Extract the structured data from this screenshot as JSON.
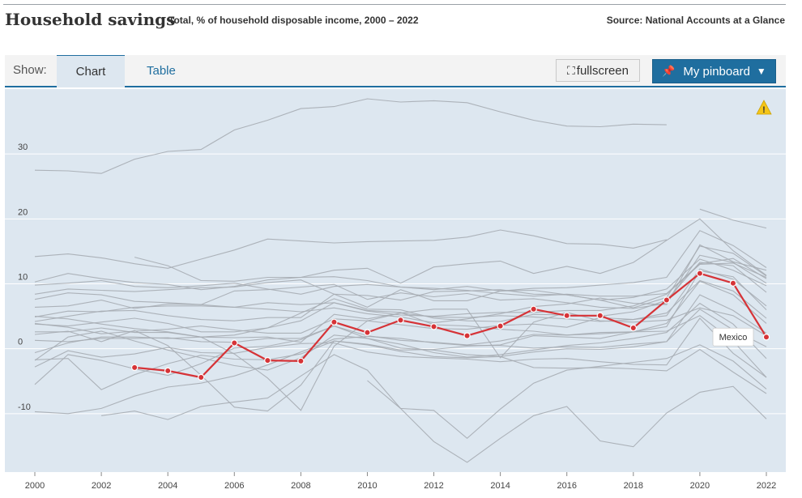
{
  "header": {
    "title": "Household savings",
    "subtitle": "Total, % of household disposable income, 2000 – 2022",
    "source": "Source: National Accounts at a Glance"
  },
  "toolbar": {
    "show_label": "Show:",
    "tabs": [
      "Chart",
      "Table"
    ],
    "active_tab": "Chart",
    "fullscreen_label": "fullscreen",
    "pinboard_label": "My pinboard",
    "accent_color": "#1f6e9f"
  },
  "chart_data": {
    "type": "line",
    "x": [
      2000,
      2001,
      2002,
      2003,
      2004,
      2005,
      2006,
      2007,
      2008,
      2009,
      2010,
      2011,
      2012,
      2013,
      2014,
      2015,
      2016,
      2017,
      2018,
      2019,
      2020,
      2021,
      2022
    ],
    "xticks": [
      "2000",
      "2002",
      "2004",
      "2006",
      "2008",
      "2010",
      "2012",
      "2014",
      "2016",
      "2018",
      "2020",
      "2022"
    ],
    "yticks": [
      "-10",
      "0",
      "10",
      "20",
      "30"
    ],
    "ylim": [
      -19,
      40
    ],
    "grid": true,
    "highlight": {
      "name": "Mexico",
      "color": "#d63337",
      "values": [
        null,
        null,
        null,
        -2.9,
        -3.4,
        -4.4,
        0.9,
        -1.8,
        -1.9,
        4.1,
        2.5,
        4.4,
        3.4,
        2.0,
        3.5,
        6.1,
        5.1,
        5.1,
        3.2,
        7.5,
        11.6,
        10.1,
        1.8
      ]
    },
    "background_series": [
      {
        "values": [
          null,
          null,
          null,
          null,
          null,
          null,
          null,
          null,
          null,
          null,
          null,
          null,
          null,
          null,
          null,
          null,
          null,
          null,
          null,
          null,
          21.5,
          19.8,
          18.6
        ]
      },
      {
        "values": [
          27.5,
          27.4,
          27.0,
          29.2,
          30.4,
          30.7,
          33.7,
          35.2,
          37.0,
          37.3,
          38.5,
          38.0,
          38.2,
          37.9,
          36.5,
          35.2,
          34.3,
          34.2,
          34.6,
          34.5,
          null,
          null,
          null
        ]
      },
      {
        "values": [
          14.2,
          14.6,
          14.0,
          13.1,
          12.4,
          13.8,
          15.2,
          16.9,
          16.6,
          16.3,
          16.5,
          16.6,
          16.7,
          17.2,
          18.3,
          17.4,
          16.2,
          16.1,
          15.5,
          16.8,
          null,
          null,
          null
        ]
      },
      {
        "values": [
          null,
          null,
          null,
          14.1,
          12.8,
          10.5,
          10.4,
          11.0,
          11.0,
          12.1,
          12.4,
          10.1,
          12.6,
          13.1,
          13.5,
          11.6,
          12.7,
          11.6,
          13.3,
          16.7,
          20.0,
          15.1,
          11.3
        ]
      },
      {
        "values": [
          10.3,
          11.6,
          10.8,
          10.2,
          9.9,
          9.1,
          9.6,
          10.6,
          11.0,
          11.1,
          10.5,
          9.5,
          9.1,
          9.6,
          8.9,
          9.3,
          9.4,
          9.8,
          10.2,
          11.0,
          18.2,
          15.9,
          12.5
        ]
      },
      {
        "values": [
          9.8,
          10.1,
          10.5,
          9.6,
          9.4,
          9.7,
          10.1,
          9.2,
          8.4,
          9.6,
          9.9,
          9.5,
          9.3,
          9.0,
          8.5,
          8.1,
          8.4,
          8.1,
          8.1,
          8.5,
          13.1,
          13.9,
          10.8
        ]
      },
      {
        "values": [
          8.4,
          9.2,
          9.0,
          8.8,
          9.1,
          9.4,
          9.5,
          10.2,
          10.6,
          8.4,
          6.4,
          9.1,
          7.4,
          7.4,
          8.9,
          9.0,
          8.3,
          7.5,
          6.3,
          7.9,
          15.8,
          14.7,
          11.2
        ]
      },
      {
        "values": [
          6.4,
          6.6,
          7.5,
          6.2,
          6.9,
          6.8,
          6.4,
          7.1,
          6.8,
          7.1,
          5.8,
          5.2,
          5.0,
          5.4,
          5.6,
          5.6,
          5.9,
          5.9,
          6.6,
          8.4,
          13.0,
          13.2,
          11.0
        ]
      },
      {
        "values": [
          4.9,
          5.8,
          5.7,
          6.4,
          6.6,
          6.6,
          6.4,
          6.1,
          5.7,
          6.3,
          5.4,
          4.9,
          4.0,
          4.6,
          5.4,
          6.5,
          6.9,
          7.8,
          7.0,
          6.8,
          16.0,
          13.4,
          12.1
        ]
      },
      {
        "values": [
          4.2,
          5.0,
          5.8,
          5.9,
          5.1,
          4.5,
          4.3,
          4.8,
          4.8,
          8.4,
          8.2,
          7.5,
          8.8,
          8.9,
          9.1,
          8.4,
          8.3,
          7.5,
          7.9,
          9.2,
          13.8,
          12.1,
          9.7
        ]
      },
      {
        "values": [
          3.8,
          3.5,
          4.1,
          4.7,
          3.9,
          2.6,
          2.6,
          3.2,
          5.5,
          7.7,
          6.1,
          6.0,
          4.7,
          4.3,
          4.2,
          5.3,
          5.2,
          5.0,
          5.7,
          7.5,
          13.3,
          12.8,
          8.7
        ]
      },
      {
        "values": [
          2.6,
          2.6,
          3.2,
          2.5,
          2.5,
          1.8,
          1.7,
          1.8,
          1.0,
          5.3,
          4.6,
          5.5,
          4.9,
          4.8,
          5.1,
          4.9,
          4.6,
          4.2,
          4.5,
          5.5,
          10.5,
          8.9,
          4.7
        ]
      },
      {
        "values": [
          -0.6,
          0.9,
          1.8,
          1.8,
          1.6,
          1.8,
          2.1,
          3.2,
          4.3,
          7.1,
          5.9,
          5.6,
          3.7,
          3.5,
          3.0,
          2.7,
          2.1,
          2.3,
          2.6,
          3.9,
          10.4,
          8.3,
          3.9
        ]
      },
      {
        "values": [
          1.3,
          1.1,
          1.6,
          1.6,
          1.7,
          1.1,
          1.0,
          1.6,
          1.6,
          3.5,
          2.0,
          1.3,
          1.0,
          0.6,
          1.2,
          2.2,
          2.1,
          2.5,
          2.6,
          3.4,
          12.0,
          11.1,
          6.0
        ]
      },
      {
        "values": [
          -1.8,
          1.8,
          2.7,
          1.2,
          -0.2,
          -1.4,
          -2.6,
          -3.3,
          -1.4,
          2.1,
          1.6,
          0.7,
          -0.6,
          -1.3,
          -0.9,
          -0.2,
          0.5,
          0.9,
          1.6,
          2.5,
          7.0,
          3.8,
          -1.5
        ]
      },
      {
        "values": [
          -2.8,
          -0.3,
          -1.3,
          -0.8,
          0.2,
          -0.6,
          -0.7,
          0.2,
          0.8,
          0.9,
          -0.5,
          -1.2,
          -1.4,
          -1.6,
          -2.0,
          -1.6,
          -1.5,
          -2.0,
          -2.4,
          -2.5,
          4.7,
          -0.7,
          -4.4
        ]
      },
      {
        "values": [
          -5.5,
          -0.9,
          -1.8,
          -3.1,
          -4.1,
          -2.3,
          0.1,
          0.4,
          1.4,
          3.5,
          1.6,
          0.1,
          -0.2,
          -0.9,
          -1.2,
          -0.5,
          0.0,
          -0.1,
          0.3,
          1.1,
          8.3,
          5.9,
          2.4
        ]
      },
      {
        "values": [
          -1.7,
          -1.5,
          -6.3,
          -4.0,
          -2.3,
          -1.0,
          -1.6,
          -1.7,
          -0.8,
          1.2,
          0.6,
          -0.4,
          -1.2,
          -1.4,
          -1.2,
          -2.9,
          -3.0,
          -2.9,
          -3.1,
          -3.4,
          -0.1,
          -3.6,
          -6.9
        ]
      },
      {
        "values": [
          -9.7,
          -10.0,
          -9.2,
          -7.3,
          -5.9,
          -5.3,
          -4.2,
          -2.5,
          -0.5,
          1.5,
          1.9,
          1.6,
          0.9,
          0.5,
          0.5,
          0.1,
          0.3,
          0.2,
          0.7,
          1.1,
          6.1,
          2.9,
          0.3
        ]
      },
      {
        "values": [
          null,
          null,
          -10.3,
          -9.6,
          -10.9,
          -8.9,
          -8.2,
          -7.6,
          -4.2,
          -0.9,
          -3.3,
          -9.2,
          -9.5,
          -13.8,
          -9.3,
          -5.3,
          -3.3,
          -2.7,
          -2.1,
          -1.5,
          0.6,
          -1.9,
          -6.2
        ]
      },
      {
        "values": [
          null,
          null,
          null,
          null,
          null,
          null,
          null,
          null,
          null,
          null,
          -4.9,
          -9.2,
          -14.3,
          -17.5,
          -13.8,
          -10.3,
          -8.9,
          -14.2,
          -15.1,
          -9.9,
          -6.7,
          -5.8,
          -10.8
        ]
      },
      {
        "values": [
          7.6,
          8.6,
          8.3,
          7.3,
          7.1,
          6.8,
          8.9,
          9.1,
          9.5,
          9.9,
          7.6,
          8.6,
          8.0,
          8.5,
          7.5,
          7.7,
          7.1,
          6.4,
          6.2,
          7.0,
          14.4,
          13.3,
          10.1
        ]
      },
      {
        "values": [
          3.9,
          3.3,
          2.3,
          2.7,
          3.0,
          3.5,
          2.9,
          2.4,
          2.4,
          4.6,
          4.3,
          3.7,
          3.1,
          3.0,
          3.6,
          3.8,
          3.3,
          4.8,
          4.5,
          5.1,
          12.3,
          10.7,
          6.6
        ]
      },
      {
        "values": [
          5.0,
          4.6,
          3.8,
          3.1,
          2.6,
          1.8,
          -0.8,
          -4.5,
          -9.5,
          0.4,
          4.3,
          5.5,
          6.1,
          6.1,
          -1.4,
          4.1,
          5.6,
          4.3,
          4.1,
          4.4,
          6.3,
          5.1,
          2.0
        ]
      },
      {
        "values": [
          2.2,
          2.7,
          1.1,
          2.8,
          0.5,
          -4.1,
          -9.0,
          -9.6,
          -5.6,
          1.2,
          0.7,
          -0.2,
          -0.1,
          0.4,
          0.6,
          2.0,
          1.8,
          1.6,
          2.6,
          2.7,
          5.1,
          1.2,
          -4.4
        ]
      }
    ]
  }
}
